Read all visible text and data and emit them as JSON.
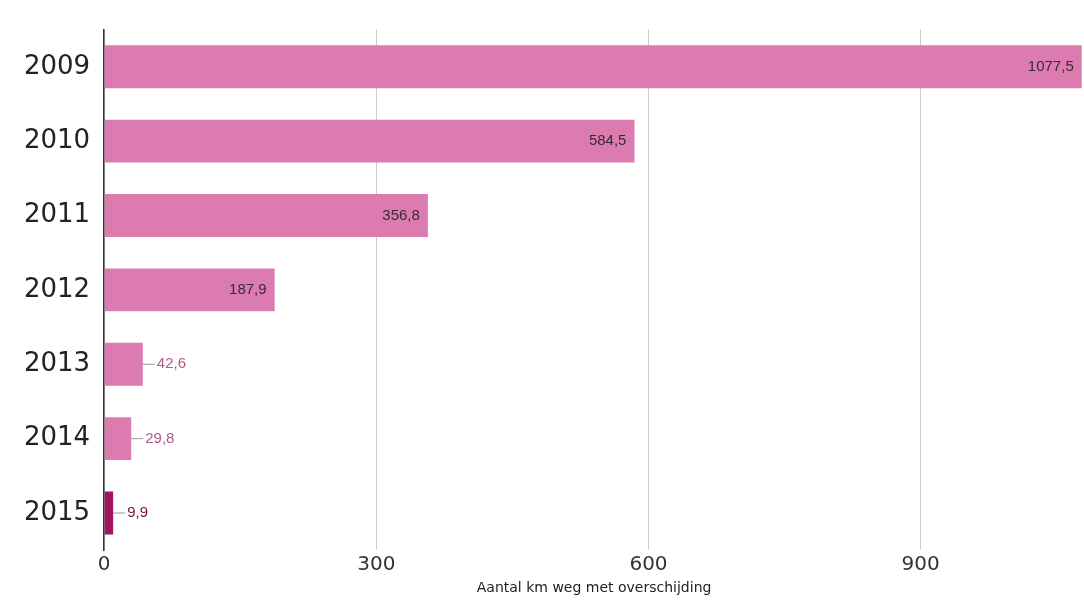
{
  "chart_data": {
    "type": "bar",
    "orientation": "horizontal",
    "xlabel": "Aantal km weg met overschijding",
    "categories": [
      "2009",
      "2010",
      "2011",
      "2012",
      "2013",
      "2014",
      "2015"
    ],
    "values": [
      1077.5,
      584.5,
      356.8,
      187.9,
      42.6,
      29.8,
      9.9
    ],
    "value_labels": [
      "1077,5",
      "584,5",
      "356,8",
      "187,9",
      "42,6",
      "29,8",
      "9,9"
    ],
    "colors": [
      "#db7bb0",
      "#db7bb0",
      "#db7bb0",
      "#db7bb0",
      "#db7bb0",
      "#db7bb0",
      "#a0175f"
    ],
    "xlim": [
      0,
      1080
    ],
    "xticks": [
      0,
      300,
      600,
      900
    ],
    "grid": "x"
  }
}
